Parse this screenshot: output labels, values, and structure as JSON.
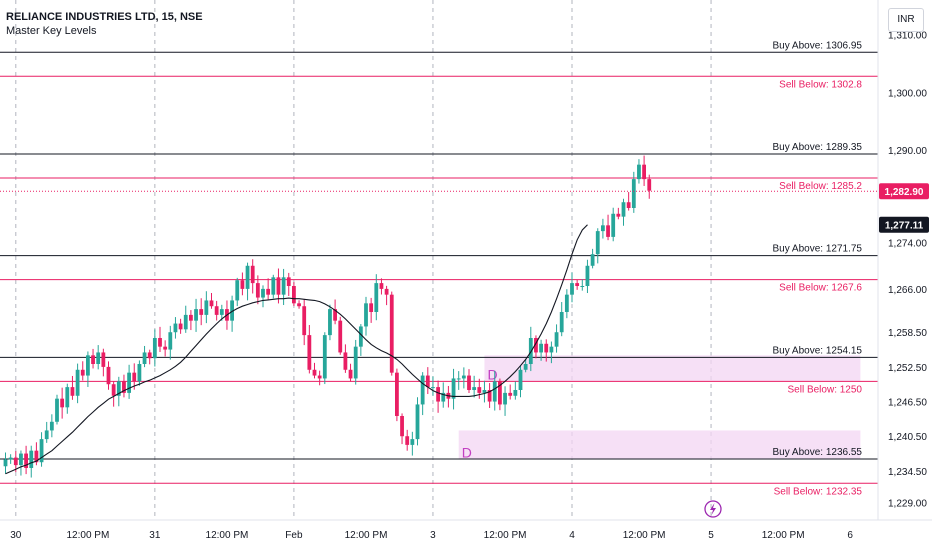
{
  "header": {
    "symbol": "RELIANCE INDUSTRIES LTD, 15, NSE",
    "indicator": "Master Key Levels",
    "currency": "INR"
  },
  "chart_data": {
    "type": "candlestick",
    "ylim": [
      1226,
      1316
    ],
    "y_ticks": [
      "1,310.00",
      "1,300.00",
      "1,290.00",
      "1,274.00",
      "1,266.00",
      "1,258.50",
      "1,252.50",
      "1,246.50",
      "1,240.50",
      "1,234.50",
      "1,229.00"
    ],
    "y_tick_values": [
      1310,
      1300,
      1290,
      1274,
      1266,
      1258.5,
      1252.5,
      1246.5,
      1240.5,
      1234.5,
      1229
    ],
    "x_ticks": [
      "30",
      "12:00 PM",
      "31",
      "12:00 PM",
      "Feb",
      "12:00 PM",
      "3",
      "12:00 PM",
      "4",
      "12:00 PM",
      "5",
      "12:00 PM",
      "6"
    ],
    "x_tick_index": [
      2,
      16,
      29,
      43,
      56,
      70,
      83,
      97,
      110,
      124,
      137,
      151,
      164
    ],
    "session_index": [
      2,
      29,
      56,
      83,
      110,
      137
    ],
    "last_price": "1,282.90",
    "last_price_value": 1282.9,
    "ma_last": "1,277.11",
    "ma_value": 1277.11,
    "levels": [
      {
        "label": "Buy Above: 1306.95",
        "value": 1306.95,
        "kind": "buy"
      },
      {
        "label": "Sell Below: 1302.8",
        "value": 1302.8,
        "kind": "sell"
      },
      {
        "label": "Buy Above: 1289.35",
        "value": 1289.35,
        "kind": "buy"
      },
      {
        "label": "Sell Below: 1285.2",
        "value": 1285.2,
        "kind": "sell"
      },
      {
        "label": "Buy Above: 1271.75",
        "value": 1271.75,
        "kind": "buy"
      },
      {
        "label": "Sell Below: 1267.6",
        "value": 1267.6,
        "kind": "sell"
      },
      {
        "label": "Buy Above: 1254.15",
        "value": 1254.15,
        "kind": "buy"
      },
      {
        "label": "Sell Below: 1250",
        "value": 1250,
        "kind": "sell"
      },
      {
        "label": "Buy Above: 1236.55",
        "value": 1236.55,
        "kind": "buy"
      },
      {
        "label": "Sell Below: 1232.35",
        "value": 1232.35,
        "kind": "sell"
      }
    ],
    "zones": [
      {
        "label": "D",
        "from_index": 93,
        "to_index": 166,
        "low": 1250,
        "high": 1254.5
      },
      {
        "label": "D",
        "from_index": 88,
        "to_index": 166,
        "low": 1236.5,
        "high": 1241.5
      }
    ],
    "closes": [
      1236.5,
      1236.8,
      1235.5,
      1237.5,
      1235,
      1238,
      1236,
      1240,
      1241.5,
      1243,
      1247,
      1245.5,
      1249,
      1247.5,
      1252,
      1251,
      1254.5,
      1253,
      1255,
      1252.5,
      1249.5,
      1247.5,
      1250,
      1248,
      1251.5,
      1250,
      1253,
      1255,
      1254,
      1257.5,
      1256,
      1255.5,
      1258.5,
      1260,
      1259,
      1261.5,
      1260.5,
      1262.5,
      1261.5,
      1264,
      1263,
      1261.5,
      1262.5,
      1260.5,
      1264,
      1267.5,
      1266,
      1270,
      1267,
      1264.5,
      1266,
      1265,
      1268,
      1265,
      1268,
      1266.5,
      1263.5,
      1263,
      1258,
      1252,
      1251,
      1250.5,
      1258,
      1262.5,
      1260.5,
      1255,
      1252,
      1250.5,
      1256,
      1259.5,
      1263.5,
      1262,
      1267,
      1266,
      1265,
      1251.5,
      1244,
      1240.5,
      1239,
      1240,
      1246,
      1251,
      1249,
      1249,
      1246.5,
      1248,
      1247,
      1250.5,
      1250.5,
      1251,
      1248.5,
      1249,
      1248,
      1248.5,
      1246.5,
      1250,
      1246,
      1248,
      1247.5,
      1248.5,
      1252,
      1253,
      1257.5,
      1255,
      1256.5,
      1255,
      1256,
      1258.5,
      1262,
      1265,
      1267,
      1266.5,
      1266.5,
      1270,
      1272,
      1276,
      1277,
      1275,
      1279,
      1278.5,
      1281,
      1280,
      1285,
      1287.5,
      1285,
      1283
    ],
    "ma": [
      1234,
      1234.4,
      1234.8,
      1235.2,
      1235.5,
      1235.9,
      1236.2,
      1236.8,
      1237.4,
      1238,
      1238.8,
      1239.6,
      1240.4,
      1241.2,
      1242.1,
      1243,
      1243.9,
      1244.7,
      1245.5,
      1246.2,
      1246.9,
      1247.4,
      1247.9,
      1248.4,
      1248.8,
      1249.2,
      1249.5,
      1249.9,
      1250.2,
      1250.6,
      1251,
      1251.5,
      1252,
      1252.6,
      1253.3,
      1254.2,
      1255.2,
      1256.2,
      1257.2,
      1258.2,
      1259.1,
      1260,
      1260.8,
      1261.5,
      1262.1,
      1262.6,
      1263,
      1263.3,
      1263.6,
      1263.8,
      1264,
      1264.1,
      1264.2,
      1264.3,
      1264.3,
      1264.4,
      1264.3,
      1264.3,
      1264.2,
      1264.1,
      1264,
      1263.8,
      1263.4,
      1262.9,
      1262.3,
      1261.6,
      1260.8,
      1259.9,
      1259,
      1258.1,
      1257.2,
      1256.4,
      1255.8,
      1255.3,
      1254.9,
      1254.4,
      1253.8,
      1253,
      1252.1,
      1251.2,
      1250.4,
      1249.6,
      1249,
      1248.4,
      1248,
      1247.7,
      1247.5,
      1247.4,
      1247.4,
      1247.4,
      1247.4,
      1247.5,
      1247.7,
      1247.9,
      1248.2,
      1248.7,
      1249.3,
      1250,
      1250.8,
      1251.7,
      1252.7,
      1253.8,
      1255.1,
      1256.6,
      1258.2,
      1260,
      1262,
      1264.3,
      1266.7,
      1269.3,
      1272,
      1274.5,
      1276.2,
      1277.11
    ]
  },
  "colors": {
    "up": "#26a69a",
    "up_alt": "#22ab94",
    "down": "#e91e63",
    "buy_line": "#131722",
    "sell_line": "#e91e63",
    "zone": "#f3d6f3",
    "ma": "#131722",
    "grid_session": "#b2b5be",
    "last_price_bg": "#e91e63",
    "ma_tag_bg": "#131722",
    "flash": "#9c27b0"
  }
}
